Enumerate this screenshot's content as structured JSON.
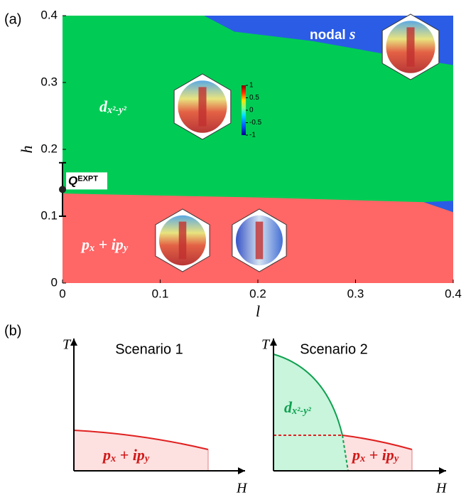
{
  "chart_data": {
    "type": "phase-diagram",
    "panel_label": "(a)",
    "x_label": "l",
    "y_label": "h",
    "xlim": [
      0,
      0.4
    ],
    "ylim": [
      0,
      0.4
    ],
    "xticks": [
      0,
      0.1,
      0.2,
      0.3,
      0.4
    ],
    "yticks": [
      0,
      0.1,
      0.2,
      0.3,
      0.4
    ],
    "regions": [
      {
        "color": "#00cc55",
        "label_parts": [
          {
            "text": "d"
          },
          {
            "sub": "x²-y²"
          }
        ],
        "x": [
          0,
          0.4,
          0.4,
          0
        ],
        "y": [
          0,
          0,
          0.4,
          0.4
        ]
      },
      {
        "color": "#ff6666",
        "label_parts": [
          {
            "text": "p"
          },
          {
            "sub": "x"
          },
          {
            "text": " + ip"
          },
          {
            "sub": "y"
          }
        ],
        "x": [
          0,
          0,
          0.2,
          0.37,
          0.4,
          0.4
        ],
        "y": [
          0,
          0.134,
          0.128,
          0.121,
          0.106,
          0
        ]
      },
      {
        "color": "#2a5ce6",
        "label_parts": [
          {
            "text": "nodal "
          },
          {
            "italic": "s"
          }
        ],
        "x": [
          0.145,
          0.176,
          0.256,
          0.321,
          0.4,
          0.4
        ],
        "y": [
          0.4,
          0.376,
          0.362,
          0.345,
          0.326,
          0.4
        ]
      },
      {
        "color": "#2a5ce6",
        "x": [
          0.37,
          0.4,
          0.4
        ],
        "y": [
          0.121,
          0.123,
          0.106
        ]
      }
    ],
    "marker": {
      "label": "Q",
      "label_sup": "EXPT",
      "x": 0,
      "y": 0.14,
      "ylow": 0.1,
      "yhigh": 0.18
    },
    "colorbar": {
      "lim": [
        -1,
        1
      ],
      "ticks": [
        1,
        0.5,
        0,
        -0.5,
        -1
      ]
    }
  },
  "panel_b": {
    "label": "(b)",
    "scenarios": [
      {
        "title": "Scenario 1",
        "y_label": "T",
        "x_label": "H",
        "phases": [
          {
            "label_parts": [
              {
                "text": "p"
              },
              {
                "sub": "x"
              },
              {
                "text": " + ip"
              },
              {
                "sub": "y"
              }
            ]
          }
        ]
      },
      {
        "title": "Scenario 2",
        "y_label": "T",
        "x_label": "H",
        "phases": [
          {
            "label_parts": [
              {
                "text": "d"
              },
              {
                "sub": "x²-y²"
              }
            ]
          },
          {
            "label_parts": [
              {
                "text": "p"
              },
              {
                "sub": "x"
              },
              {
                "text": " + ip"
              },
              {
                "sub": "y"
              }
            ]
          }
        ]
      }
    ]
  }
}
